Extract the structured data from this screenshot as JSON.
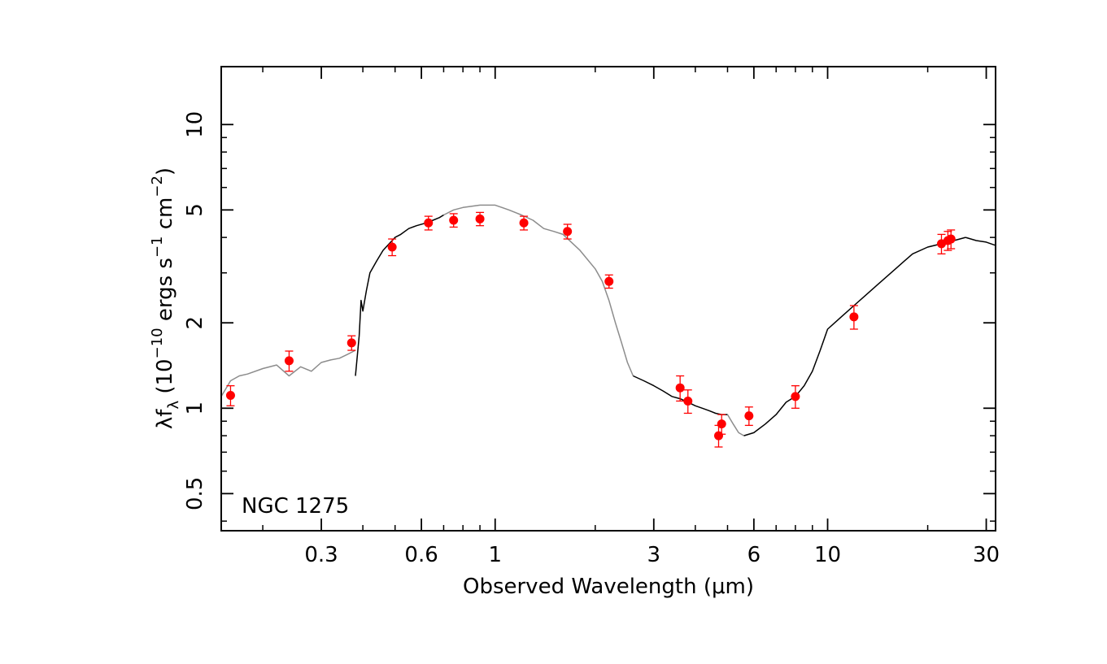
{
  "chart_data": {
    "type": "line",
    "title": "",
    "annotation": "NGC 1275",
    "xlabel": {
      "pre": "Observed Wavelength (",
      "mu": "μ",
      "post": "m)"
    },
    "ylabel": {
      "lambda": "λ",
      "f": "f",
      "sub": "λ",
      "open": " (10",
      "exp1": "−10",
      "mid1": " ergs s",
      "exp2": "−1",
      "mid2": " cm",
      "exp3": "−2",
      "close": ")"
    },
    "x_scale": "log",
    "y_scale": "log",
    "xlim": [
      0.15,
      32
    ],
    "ylim": [
      0.37,
      16
    ],
    "x_ticks": [
      {
        "value": 0.3,
        "label": "0.3"
      },
      {
        "value": 0.6,
        "label": "0.6"
      },
      {
        "value": 1,
        "label": "1"
      },
      {
        "value": 3,
        "label": "3"
      },
      {
        "value": 6,
        "label": "6"
      },
      {
        "value": 10,
        "label": "10"
      },
      {
        "value": 30,
        "label": "30"
      }
    ],
    "y_ticks": [
      {
        "value": 0.5,
        "label": "0.5"
      },
      {
        "value": 1,
        "label": "1"
      },
      {
        "value": 2,
        "label": "2"
      },
      {
        "value": 5,
        "label": "5"
      },
      {
        "value": 10,
        "label": "10"
      }
    ],
    "series": [
      {
        "type": "line",
        "color": "#8c8c8c",
        "x": [
          0.15,
          0.16,
          0.17,
          0.18,
          0.2,
          0.22,
          0.24,
          0.26,
          0.28,
          0.3,
          0.32,
          0.34,
          0.36,
          0.38
        ],
        "y": [
          1.1,
          1.25,
          1.3,
          1.32,
          1.38,
          1.42,
          1.3,
          1.4,
          1.35,
          1.45,
          1.48,
          1.5,
          1.55,
          1.6
        ]
      },
      {
        "type": "line",
        "color": "#000000",
        "x": [
          0.38,
          0.39,
          0.395,
          0.4,
          0.41,
          0.42,
          0.44,
          0.46,
          0.48,
          0.5,
          0.52,
          0.55,
          0.58,
          0.62,
          0.65,
          0.68,
          0.7
        ],
        "y": [
          1.3,
          1.8,
          2.4,
          2.2,
          2.6,
          3.0,
          3.3,
          3.6,
          3.8,
          4.0,
          4.1,
          4.3,
          4.4,
          4.5,
          4.6,
          4.7,
          4.8
        ]
      },
      {
        "type": "line",
        "color": "#8c8c8c",
        "x": [
          0.7,
          0.75,
          0.8,
          0.9,
          1.0,
          1.1,
          1.2,
          1.3,
          1.4,
          1.5,
          1.6,
          1.8,
          2.0,
          2.1,
          2.2,
          2.3,
          2.4,
          2.5,
          2.6
        ],
        "y": [
          4.8,
          5.0,
          5.1,
          5.2,
          5.2,
          5.0,
          4.8,
          4.6,
          4.3,
          4.2,
          4.1,
          3.6,
          3.1,
          2.8,
          2.4,
          2.0,
          1.7,
          1.45,
          1.3
        ]
      },
      {
        "type": "line",
        "color": "#000000",
        "x": [
          2.6,
          2.8,
          3.0,
          3.2,
          3.4,
          3.6,
          3.8,
          4.0,
          4.2,
          4.4,
          4.6,
          4.8,
          5.0
        ],
        "y": [
          1.3,
          1.25,
          1.2,
          1.15,
          1.1,
          1.08,
          1.05,
          1.02,
          1.0,
          0.98,
          0.96,
          0.95,
          0.95
        ]
      },
      {
        "type": "line",
        "color": "#8c8c8c",
        "x": [
          5.0,
          5.2,
          5.4,
          5.6
        ],
        "y": [
          0.95,
          0.88,
          0.82,
          0.8
        ]
      },
      {
        "type": "line",
        "color": "#000000",
        "x": [
          5.6,
          6.0,
          6.5,
          7.0,
          7.5,
          8.0,
          8.5,
          9.0,
          9.5,
          10.0,
          10.5,
          11.0,
          12.0,
          13.0,
          14.0,
          15.0,
          16.0,
          17.0,
          18.0,
          20.0,
          22.0,
          24.0,
          26.0
        ],
        "y": [
          0.8,
          0.82,
          0.88,
          0.95,
          1.05,
          1.1,
          1.2,
          1.35,
          1.6,
          1.9,
          2.0,
          2.1,
          2.3,
          2.5,
          2.7,
          2.9,
          3.1,
          3.3,
          3.5,
          3.7,
          3.8,
          3.9,
          4.0
        ]
      },
      {
        "type": "line",
        "color": "#000000",
        "x": [
          26.0,
          28.0,
          30.0,
          32.0
        ],
        "y": [
          4.0,
          3.9,
          3.85,
          3.75
        ]
      },
      {
        "type": "scatter",
        "color": "#ff0000",
        "x": [
          0.16,
          0.24,
          0.37,
          0.49,
          0.63,
          0.75,
          0.9,
          1.22,
          1.65,
          2.2,
          3.6,
          3.8,
          4.7,
          4.8,
          5.8,
          8.0,
          12.0,
          22.0,
          23.0,
          23.5
        ],
        "y": [
          1.11,
          1.47,
          1.7,
          3.7,
          4.5,
          4.6,
          4.65,
          4.5,
          4.2,
          2.8,
          1.18,
          1.06,
          0.8,
          0.88,
          0.94,
          1.1,
          2.1,
          3.8,
          3.9,
          3.95
        ],
        "yerr": [
          0.09,
          0.12,
          0.1,
          0.25,
          0.25,
          0.25,
          0.25,
          0.25,
          0.25,
          0.15,
          0.12,
          0.1,
          0.07,
          0.07,
          0.07,
          0.1,
          0.2,
          0.3,
          0.3,
          0.3
        ]
      }
    ]
  }
}
